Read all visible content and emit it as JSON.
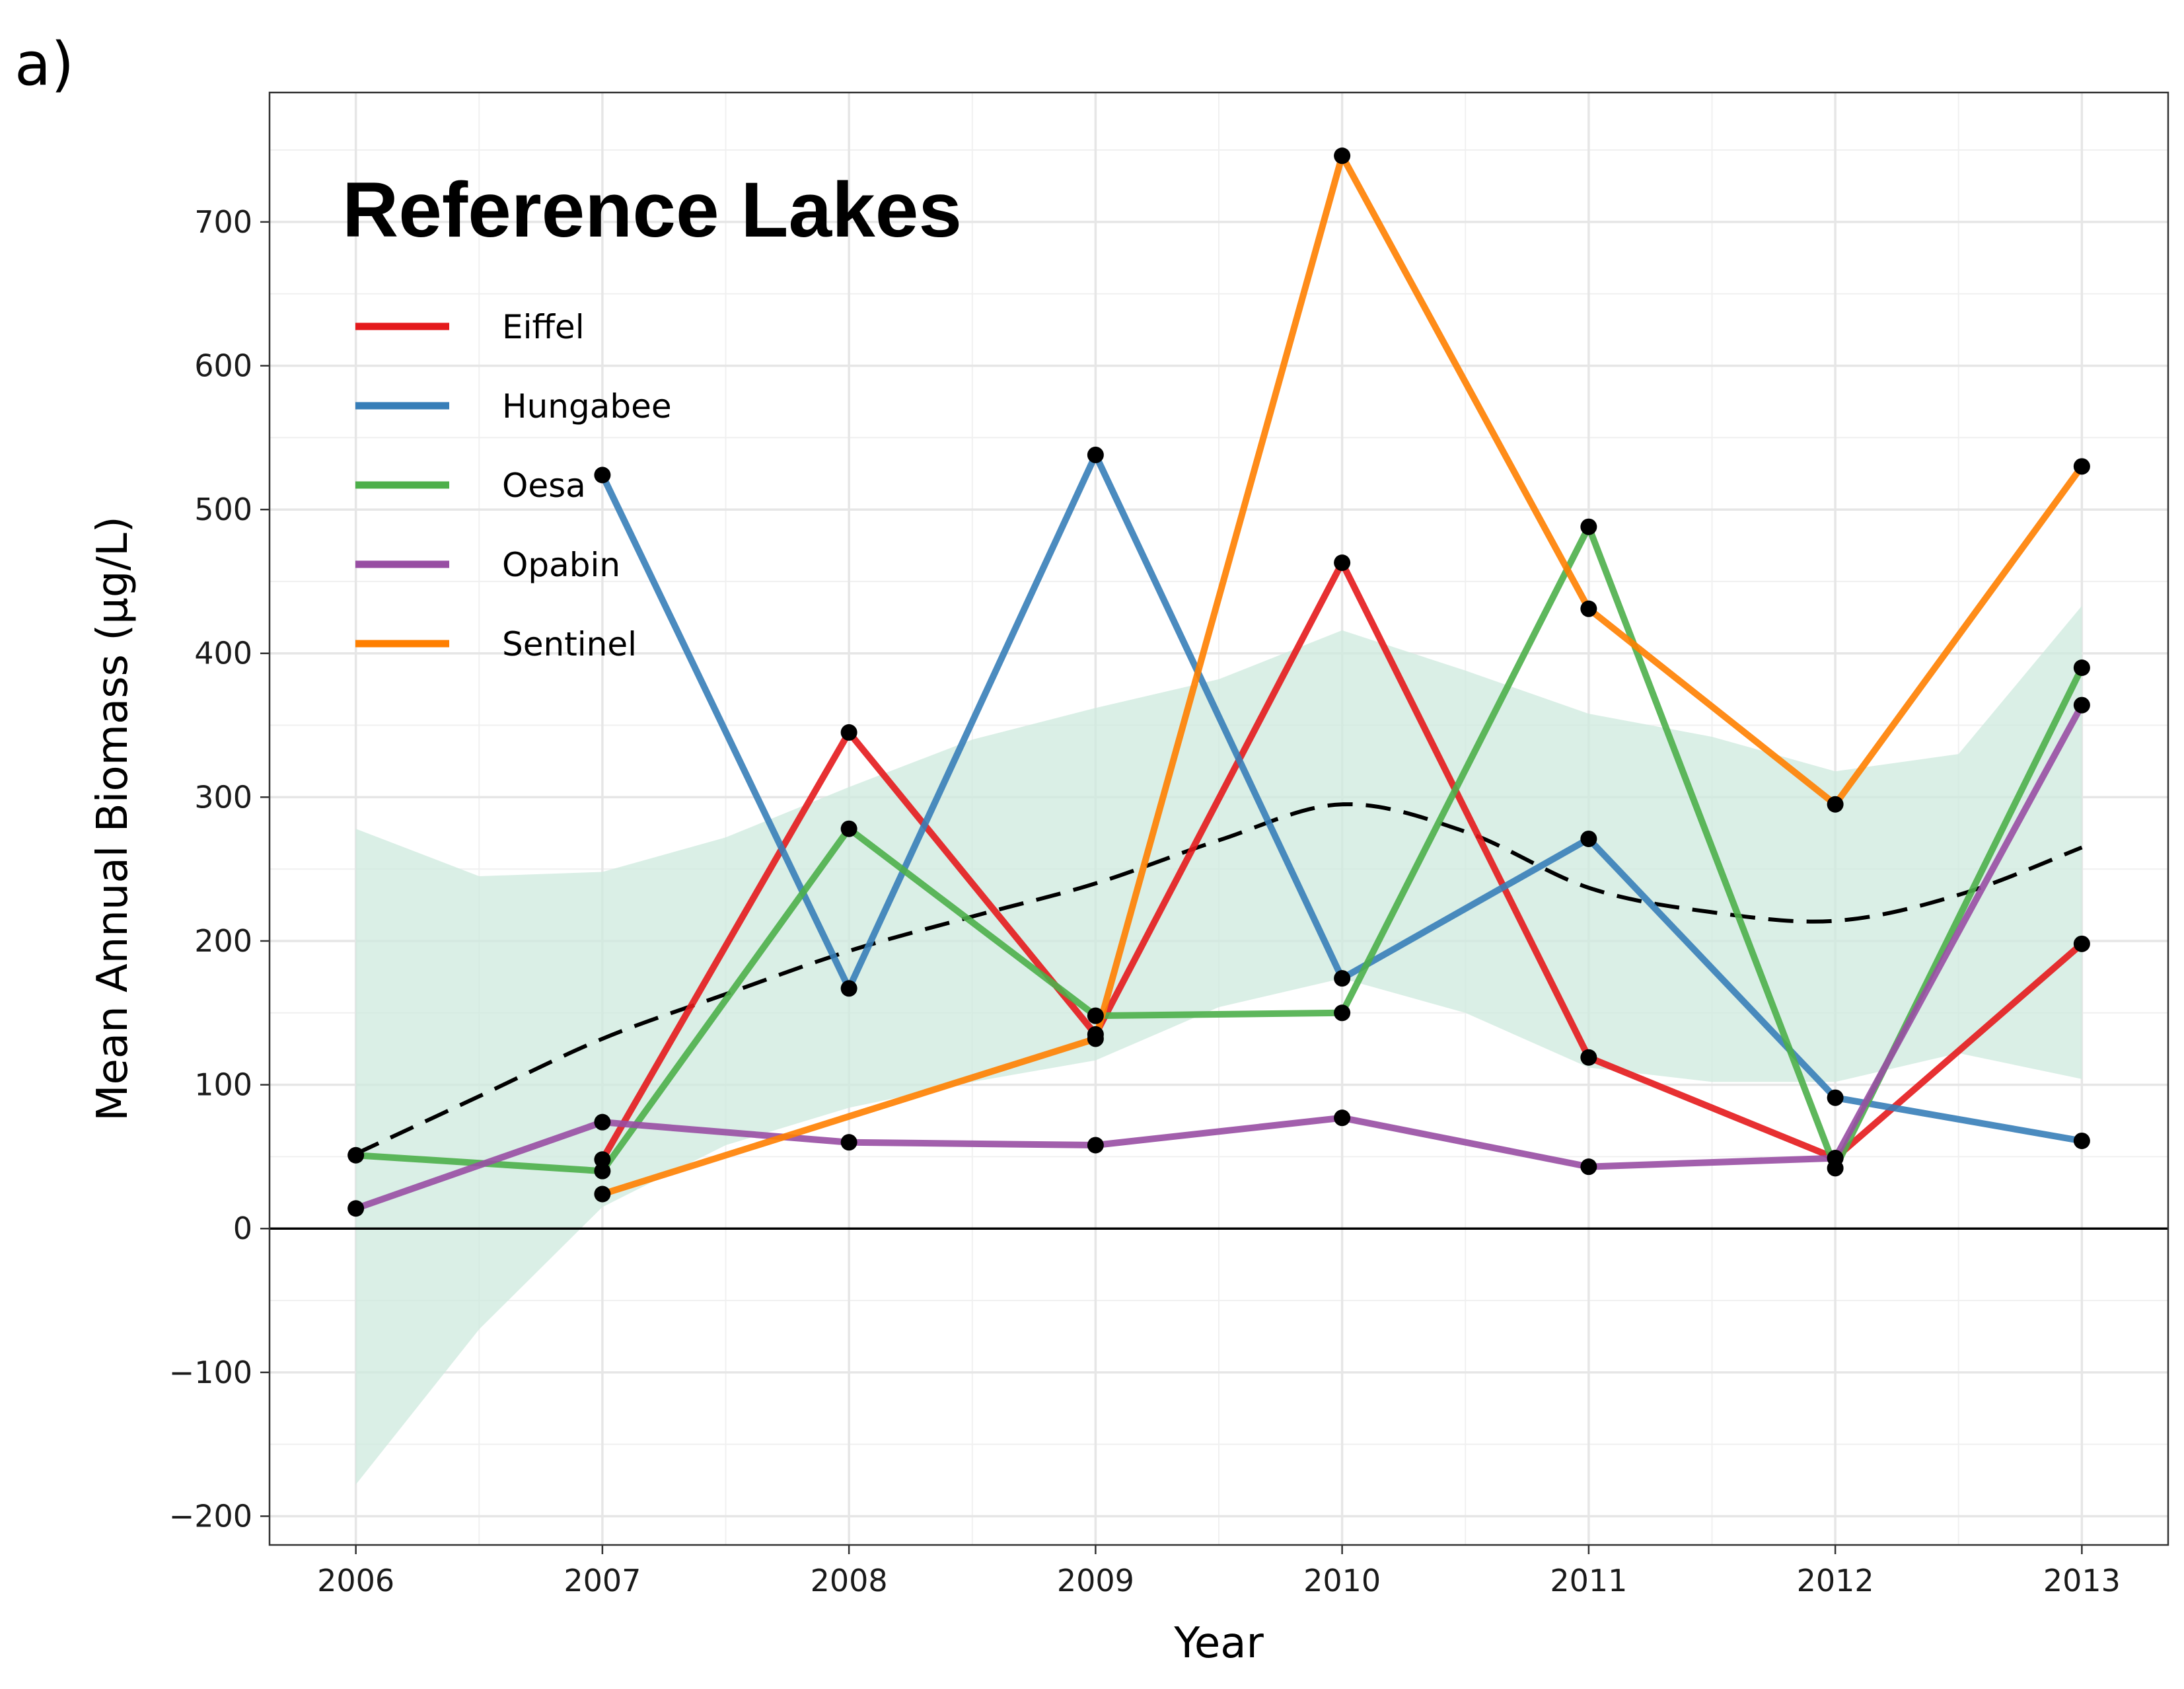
{
  "panel_label": "a)",
  "chart_data": {
    "type": "line",
    "title": "Reference Lakes",
    "xlabel": "Year",
    "ylabel": "Mean Annual Biomass (µg/L)",
    "xlim": [
      2005.65,
      2013.35
    ],
    "ylim": [
      -220,
      790
    ],
    "x_ticks": [
      2006,
      2007,
      2008,
      2009,
      2010,
      2011,
      2012,
      2013
    ],
    "y_ticks": [
      -200,
      -100,
      0,
      100,
      200,
      300,
      400,
      500,
      600,
      700
    ],
    "y_tick_labels": [
      "−200",
      "−100",
      "0",
      "100",
      "200",
      "300",
      "400",
      "500",
      "600",
      "700"
    ],
    "grid": true,
    "zero_line": true,
    "legend_position": "top-left",
    "series": [
      {
        "name": "Eiffel",
        "color": "#e41a1c",
        "x": [
          2007,
          2008,
          2009,
          2010,
          2011,
          2012,
          2013
        ],
        "values": [
          48,
          345,
          135,
          463,
          119,
          49,
          198
        ]
      },
      {
        "name": "Hungabee",
        "color": "#377eb8",
        "x": [
          2007,
          2008,
          2009,
          2010,
          2011,
          2012,
          2013
        ],
        "values": [
          524,
          167,
          538,
          174,
          271,
          91,
          61
        ]
      },
      {
        "name": "Oesa",
        "color": "#4daf4a",
        "x": [
          2006,
          2007,
          2008,
          2009,
          2010,
          2011,
          2012,
          2013
        ],
        "values": [
          51,
          40,
          278,
          148,
          150,
          488,
          42,
          390
        ]
      },
      {
        "name": "Opabin",
        "color": "#984ea3",
        "x": [
          2006,
          2007,
          2008,
          2009,
          2010,
          2011,
          2012,
          2013
        ],
        "values": [
          14,
          74,
          60,
          58,
          77,
          43,
          49,
          364
        ]
      },
      {
        "name": "Sentinel",
        "color": "#ff7f00",
        "x": [
          2007,
          2009,
          2010,
          2011,
          2012,
          2013
        ],
        "values": [
          24,
          132,
          746,
          431,
          295,
          530
        ]
      }
    ],
    "trend": {
      "color": "#000000",
      "x": [
        2006,
        2006.5,
        2007,
        2007.5,
        2008,
        2008.5,
        2009,
        2009.5,
        2010,
        2010.5,
        2011,
        2011.5,
        2012,
        2012.5,
        2013
      ],
      "values": [
        52,
        92,
        132,
        163,
        193,
        217,
        240,
        270,
        295,
        276,
        237,
        220,
        214,
        232,
        265
      ]
    },
    "confidence_band": {
      "color": "#cdeade",
      "x": [
        2006,
        2006.5,
        2007,
        2007.5,
        2008,
        2008.5,
        2009,
        2009.5,
        2010,
        2010.5,
        2011,
        2011.5,
        2012,
        2012.5,
        2013
      ],
      "upper": [
        278,
        245,
        248,
        272,
        307,
        340,
        362,
        382,
        416,
        388,
        358,
        342,
        318,
        330,
        433
      ],
      "lower": [
        -178,
        -70,
        15,
        58,
        84,
        102,
        117,
        154,
        174,
        150,
        112,
        102,
        102,
        122,
        104
      ]
    }
  }
}
